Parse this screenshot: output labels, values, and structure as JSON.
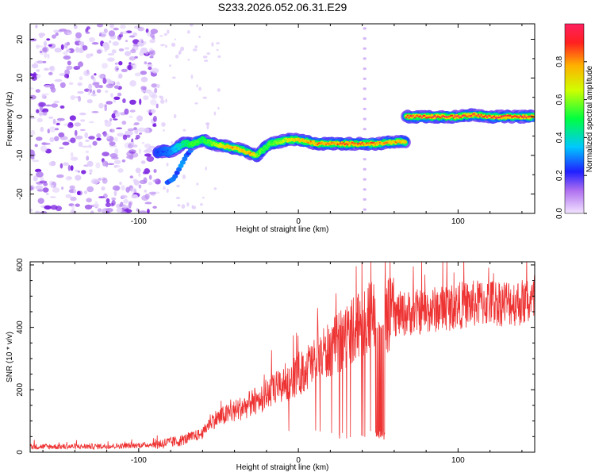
{
  "title": "S233.2026.052.06.31.E29",
  "colors": {
    "snr_line": "#ee3333",
    "frame": "#000000",
    "speckle": "#8a2be2"
  },
  "chart_data": [
    {
      "type": "heatmap",
      "name": "spectrogram",
      "xlabel": "Height of straight line (km)",
      "ylabel": "Frequency (Hz)",
      "xlim": [
        -168,
        148
      ],
      "ylim": [
        -25,
        24
      ],
      "x_ticks": [
        -100,
        0,
        100
      ],
      "x_tick_labels": [
        "-100",
        "0",
        "100"
      ],
      "y_ticks": [
        -20,
        -10,
        0,
        10,
        20
      ],
      "y_tick_labels": [
        "-20",
        "-10",
        "0",
        "10",
        "20"
      ],
      "noise_region_km": [
        -168,
        -88
      ],
      "signal_track": {
        "x": [
          -88,
          -80,
          -72,
          -66,
          -60,
          -54,
          -48,
          -42,
          -36,
          -30,
          -26,
          -22,
          -18,
          -12,
          -6,
          0,
          6,
          12,
          20,
          30,
          40,
          50,
          60,
          67,
          67.5,
          80,
          90,
          100,
          110,
          120,
          130,
          140,
          148
        ],
        "freq_hz": [
          -9,
          -9,
          -7,
          -7,
          -6,
          -7,
          -7.5,
          -8,
          -8.5,
          -9.5,
          -10,
          -8.5,
          -7,
          -6.5,
          -6,
          -6,
          -6.5,
          -7,
          -7,
          -7,
          -7,
          -7,
          -6.5,
          -6.5,
          0,
          0,
          0,
          0,
          0.5,
          0,
          0,
          0,
          0
        ],
        "amplitude": [
          0.25,
          0.3,
          0.45,
          0.55,
          0.5,
          0.6,
          0.7,
          0.8,
          0.75,
          0.85,
          0.6,
          0.55,
          0.55,
          0.6,
          0.7,
          0.75,
          0.8,
          0.85,
          0.85,
          0.9,
          0.9,
          0.85,
          0.8,
          0.8,
          0.95,
          1.0,
          1.0,
          1.0,
          0.95,
          1.0,
          1.0,
          1.0,
          0.95
        ]
      },
      "secondary_track": {
        "x": [
          -82,
          -78,
          -74,
          -70,
          -66
        ],
        "freq_hz": [
          -17,
          -16,
          -13,
          -10,
          -8
        ]
      },
      "vertical_artifact_km": 41.5
    },
    {
      "type": "colorbar",
      "name": "amplitude-scale",
      "label": "Normalized spectral amplitude",
      "range": [
        0,
        1
      ],
      "ticks": [
        0.0,
        0.2,
        0.4,
        0.6,
        0.8
      ],
      "tick_labels": [
        "0.0",
        "0.2",
        "0.4",
        "0.6",
        "0.8"
      ]
    },
    {
      "type": "line",
      "name": "snr",
      "xlabel": "Height of straight line (km)",
      "ylabel": "SNR (10 * v/v)",
      "xlim": [
        -168,
        148
      ],
      "ylim": [
        0,
        610
      ],
      "x_ticks": [
        -100,
        0,
        100
      ],
      "x_tick_labels": [
        "-100",
        "0",
        "100"
      ],
      "y_ticks": [
        0,
        200,
        400,
        600
      ],
      "y_tick_labels": [
        "0",
        "200",
        "400",
        "600"
      ],
      "trend": {
        "x": [
          -168,
          -140,
          -110,
          -90,
          -75,
          -60,
          -55,
          -45,
          -30,
          -15,
          0,
          15,
          25,
          35,
          40,
          45,
          50,
          60,
          75,
          90,
          100,
          120,
          148
        ],
        "y": [
          18,
          18,
          20,
          25,
          35,
          60,
          100,
          120,
          155,
          200,
          250,
          310,
          350,
          400,
          420,
          430,
          430,
          440,
          450,
          460,
          470,
          480,
          480
        ]
      },
      "notch": {
        "x_range": [
          48,
          54
        ],
        "y": 55
      }
    }
  ]
}
